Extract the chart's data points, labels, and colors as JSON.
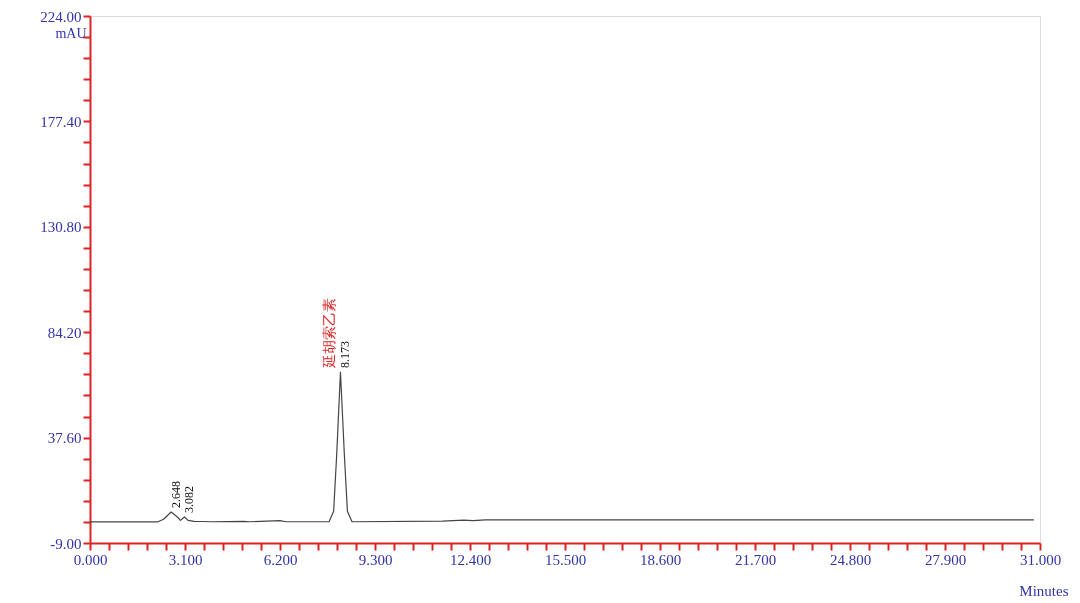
{
  "chart_data": {
    "type": "line",
    "xlabel": "Minutes",
    "ylabel": "mAU",
    "x": [
      0,
      2.2,
      2.4,
      2.648,
      2.85,
      2.95,
      3.082,
      3.2,
      3.4,
      3.6,
      4.0,
      5.0,
      5.2,
      6.2,
      6.4,
      7.8,
      7.95,
      8.05,
      8.173,
      8.3,
      8.4,
      8.55,
      11.5,
      12.2,
      12.5,
      12.9,
      30.8
    ],
    "series": [
      {
        "color": "#444444",
        "values": [
          0.3,
          0.3,
          1.5,
          4.7,
          2.5,
          1.0,
          2.5,
          1.0,
          0.6,
          0.5,
          0.4,
          0.6,
          0.4,
          0.9,
          0.4,
          0.4,
          5,
          30,
          66.6,
          30,
          5,
          0.4,
          0.7,
          1.1,
          0.9,
          1.2,
          1.2
        ]
      }
    ],
    "annotations": [
      {
        "text": "2.648",
        "x": 2.648,
        "y": 4.7
      },
      {
        "text": "3.082",
        "x": 3.082,
        "y": 2.5
      },
      {
        "text": "8.173",
        "x": 8.173,
        "y": 66.6
      },
      {
        "text": "延胡索乙素",
        "x": 8.173,
        "y": 66.6
      }
    ],
    "xlim": [
      0,
      31
    ],
    "ylim": [
      -9,
      224
    ],
    "xticks": [
      {
        "value": 0,
        "label": "0.000"
      },
      {
        "value": 0.62,
        "label": null
      },
      {
        "value": 1.24,
        "label": null
      },
      {
        "value": 1.86,
        "label": null
      },
      {
        "value": 2.48,
        "label": null
      },
      {
        "value": 3.1,
        "label": "3.100"
      },
      {
        "value": 3.72,
        "label": null
      },
      {
        "value": 4.34,
        "label": null
      },
      {
        "value": 4.96,
        "label": null
      },
      {
        "value": 5.58,
        "label": null
      },
      {
        "value": 6.2,
        "label": "6.200"
      },
      {
        "value": 6.82,
        "label": null
      },
      {
        "value": 7.44,
        "label": null
      },
      {
        "value": 8.06,
        "label": null
      },
      {
        "value": 8.68,
        "label": null
      },
      {
        "value": 9.3,
        "label": "9.300"
      },
      {
        "value": 9.92,
        "label": null
      },
      {
        "value": 10.54,
        "label": null
      },
      {
        "value": 11.16,
        "label": null
      },
      {
        "value": 11.78,
        "label": null
      },
      {
        "value": 12.4,
        "label": "12.400"
      },
      {
        "value": 13.02,
        "label": null
      },
      {
        "value": 13.64,
        "label": null
      },
      {
        "value": 14.26,
        "label": null
      },
      {
        "value": 14.88,
        "label": null
      },
      {
        "value": 15.5,
        "label": "15.500"
      },
      {
        "value": 16.12,
        "label": null
      },
      {
        "value": 16.74,
        "label": null
      },
      {
        "value": 17.36,
        "label": null
      },
      {
        "value": 17.98,
        "label": null
      },
      {
        "value": 18.6,
        "label": "18.600"
      },
      {
        "value": 19.22,
        "label": null
      },
      {
        "value": 19.84,
        "label": null
      },
      {
        "value": 20.46,
        "label": null
      },
      {
        "value": 21.08,
        "label": null
      },
      {
        "value": 21.7,
        "label": "21.700"
      },
      {
        "value": 22.32,
        "label": null
      },
      {
        "value": 22.94,
        "label": null
      },
      {
        "value": 23.56,
        "label": null
      },
      {
        "value": 24.18,
        "label": null
      },
      {
        "value": 24.8,
        "label": "24.800"
      },
      {
        "value": 25.42,
        "label": null
      },
      {
        "value": 26.04,
        "label": null
      },
      {
        "value": 26.66,
        "label": null
      },
      {
        "value": 27.28,
        "label": null
      },
      {
        "value": 27.9,
        "label": "27.900"
      },
      {
        "value": 28.52,
        "label": null
      },
      {
        "value": 29.14,
        "label": null
      },
      {
        "value": 29.76,
        "label": null
      },
      {
        "value": 30.38,
        "label": null
      },
      {
        "value": 31,
        "label": "31.000"
      }
    ],
    "yticks": [
      {
        "value": -9,
        "label": "-9.00"
      },
      {
        "value": 0.32,
        "label": null
      },
      {
        "value": 9.64,
        "label": null
      },
      {
        "value": 18.96,
        "label": null
      },
      {
        "value": 28.28,
        "label": null
      },
      {
        "value": 37.6,
        "label": "37.60"
      },
      {
        "value": 46.92,
        "label": null
      },
      {
        "value": 56.24,
        "label": null
      },
      {
        "value": 65.56,
        "label": null
      },
      {
        "value": 74.88,
        "label": null
      },
      {
        "value": 84.2,
        "label": "84.20"
      },
      {
        "value": 93.52,
        "label": null
      },
      {
        "value": 102.84,
        "label": null
      },
      {
        "value": 112.16,
        "label": null
      },
      {
        "value": 121.48,
        "label": null
      },
      {
        "value": 130.8,
        "label": "130.80"
      },
      {
        "value": 140.12,
        "label": null
      },
      {
        "value": 149.44,
        "label": null
      },
      {
        "value": 158.76,
        "label": null
      },
      {
        "value": 168.08,
        "label": null
      },
      {
        "value": 177.4,
        "label": "177.40"
      },
      {
        "value": 186.72,
        "label": null
      },
      {
        "value": 196.04,
        "label": null
      },
      {
        "value": 205.36,
        "label": null
      },
      {
        "value": 214.68,
        "label": null
      },
      {
        "value": 224,
        "label": "224.00"
      }
    ],
    "grid": false,
    "marker": "none",
    "line_style": "solid"
  }
}
